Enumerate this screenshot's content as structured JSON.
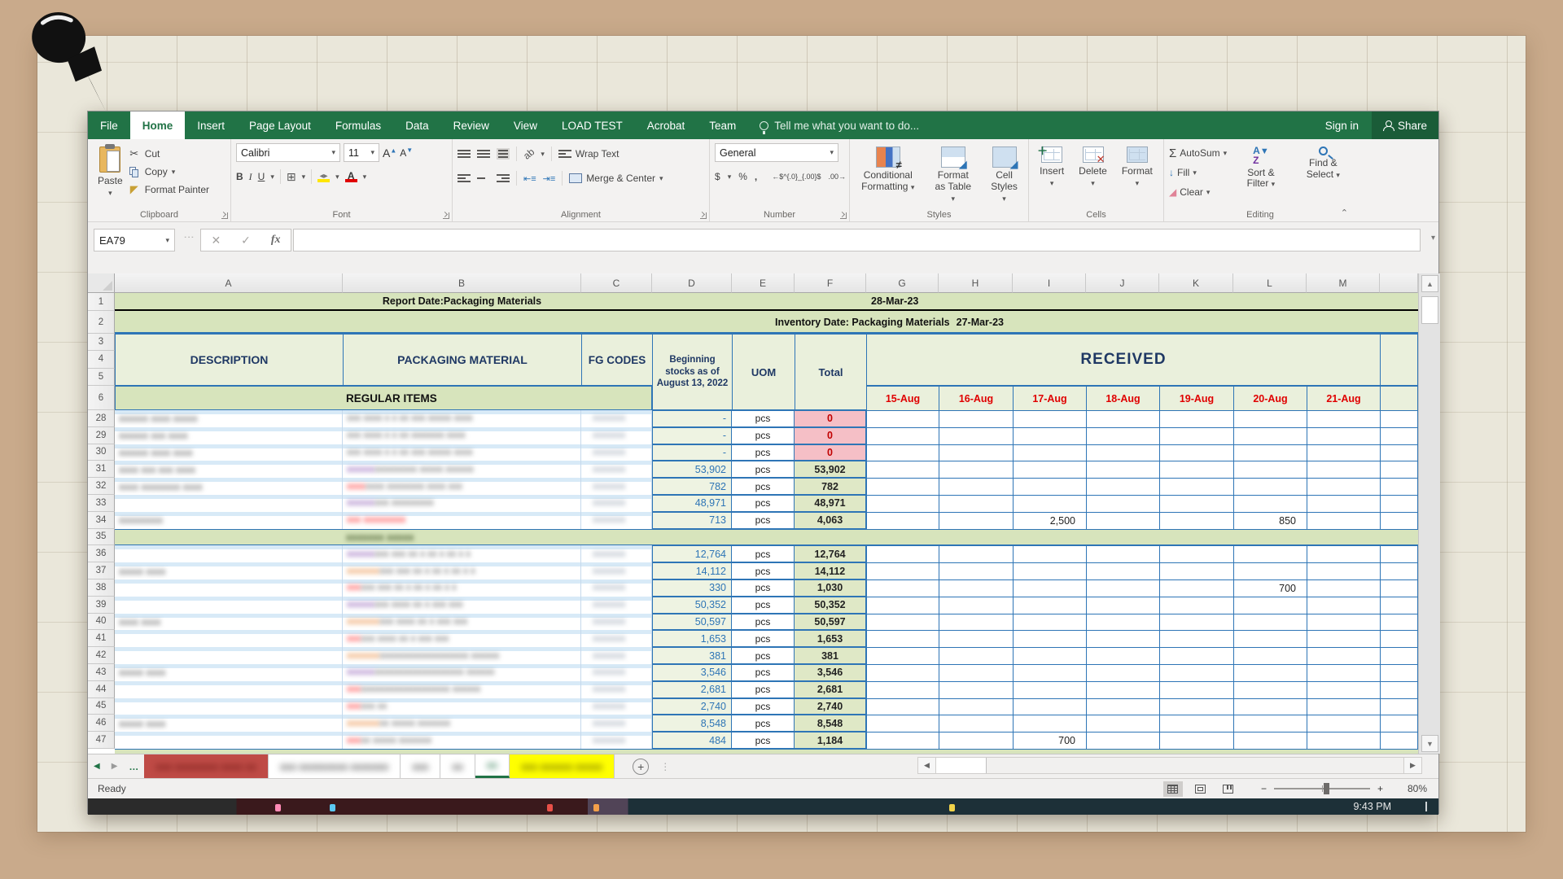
{
  "app": {
    "ribbon_tabs": [
      "File",
      "Home",
      "Insert",
      "Page Layout",
      "Formulas",
      "Data",
      "Review",
      "View",
      "LOAD TEST",
      "Acrobat",
      "Team"
    ],
    "active_tab": "Home",
    "tell_me": "Tell me what you want to do...",
    "sign_in": "Sign in",
    "share": "Share",
    "groups": {
      "clipboard": {
        "label": "Clipboard",
        "paste": "Paste",
        "cut": "Cut",
        "copy": "Copy",
        "format_painter": "Format Painter"
      },
      "font": {
        "label": "Font",
        "font_name": "Calibri",
        "font_size": "11",
        "bold": "B",
        "italic": "I",
        "underline": "U"
      },
      "alignment": {
        "label": "Alignment",
        "wrap_text": "Wrap Text",
        "merge_center": "Merge & Center"
      },
      "number": {
        "label": "Number",
        "format": "General",
        "currency": "$",
        "percent": "%",
        "comma": ",",
        "inc_dec": ".00",
        "dec_dec": ".00"
      },
      "styles": {
        "label": "Styles",
        "conditional": "Conditional Formatting",
        "format_table": "Format as Table",
        "cell_styles": "Cell Styles"
      },
      "cells": {
        "label": "Cells",
        "insert": "Insert",
        "delete": "Delete",
        "format": "Format"
      },
      "editing": {
        "label": "Editing",
        "autosum": "AutoSum",
        "fill": "Fill",
        "clear": "Clear",
        "sort_filter": "Sort & Filter",
        "find_select": "Find & Select"
      }
    },
    "formula_bar": {
      "name_box": "EA79",
      "cancel": "✕",
      "enter": "✓",
      "fx": "fx",
      "formula_value": ""
    }
  },
  "icons": {
    "dropdown": "▾",
    "up_arrow": "▴",
    "down_arrow": "▾",
    "left_tri": "◀",
    "right_tri": "▶",
    "scroll_up": "▲",
    "scroll_down": "▼",
    "scissors": "✂",
    "sigma": "Σ",
    "plus": "+",
    "minus": "−",
    "ellipsis": "…",
    "az_a": "A",
    "az_z": "Z",
    "funnel": "▼",
    "fill_arrow": "↓",
    "clear": "◢"
  },
  "sheet": {
    "columns": [
      "A",
      "B",
      "C",
      "D",
      "E",
      "F",
      "G",
      "H",
      "I",
      "J",
      "K",
      "L",
      "M"
    ],
    "row1": {
      "num": "1",
      "label": "Report Date:Packaging Materials",
      "date": "28-Mar-23"
    },
    "row2": {
      "num": "2",
      "label": "Inventory Date: Packaging Materials",
      "date": "27-Mar-23"
    },
    "header_rows": [
      "3",
      "4",
      "5"
    ],
    "row6_num": "6",
    "headers": {
      "description": "DESCRIPTION",
      "packaging": "PACKAGING MATERIAL",
      "fg_codes": "FG CODES",
      "beginning": "Beginning stocks as of August 13, 2022",
      "uom": "UOM",
      "total": "Total",
      "received": "RECEIVED"
    },
    "date_columns": [
      "15-Aug",
      "16-Aug",
      "17-Aug",
      "18-Aug",
      "19-Aug",
      "20-Aug",
      "21-Aug"
    ],
    "section_regular": "REGULAR ITEMS",
    "rows": [
      {
        "n": "28",
        "desc": "xxxxxx xxxx xxxxx",
        "pm": [
          [
            "g",
            "xxx xxxx x x xx xxx xxxxx xxxx"
          ]
        ],
        "fg": "xxxxxxx",
        "beg": "-",
        "uom": "pcs",
        "total": "0",
        "tt": "pink",
        "recv": {}
      },
      {
        "n": "29",
        "desc": "xxxxxx xxx xxxx",
        "pm": [
          [
            "g",
            "xxx xxxx x x xx xxxxxxx xxxx"
          ]
        ],
        "fg": "xxxxxxx",
        "beg": "-",
        "uom": "pcs",
        "total": "0",
        "tt": "pink",
        "recv": {}
      },
      {
        "n": "30",
        "desc": "xxxxxx xxxx xxxx",
        "pm": [
          [
            "g",
            "xxx xxxx x x xx xxx xxxxx xxxx"
          ]
        ],
        "fg": "xxxxxxx",
        "beg": "-",
        "uom": "pcs",
        "total": "0",
        "tt": "pink",
        "recv": {}
      },
      {
        "n": "31",
        "desc": "xxxx xxx xxx xxxx",
        "pm": [
          [
            "p",
            "xxxxxx"
          ],
          [
            "g",
            " xxxxxxxxx xxxxx xxxxxx"
          ]
        ],
        "fg": "xxxxxxx",
        "beg": "53,902",
        "uom": "pcs",
        "total": "53,902",
        "tt": "green",
        "recv": {}
      },
      {
        "n": "32",
        "desc": "xxxx xxxxxxxx xxxx",
        "pm": [
          [
            "r",
            "xxxx"
          ],
          [
            "g",
            " xxxx xxxxxxxx xxxx xxx"
          ]
        ],
        "fg": "xxxxxxx",
        "beg": "782",
        "uom": "pcs",
        "total": "782",
        "tt": "green",
        "recv": {}
      },
      {
        "n": "33",
        "desc": "",
        "pm": [
          [
            "p",
            "xxxxxx"
          ],
          [
            "g",
            " xxx  xxxxxxxxx"
          ]
        ],
        "fg": "xxxxxxx",
        "beg": "48,971",
        "uom": "pcs",
        "total": "48,971",
        "tt": "green",
        "recv": {}
      },
      {
        "n": "34",
        "desc": "xxxxxxxxx",
        "pm": [
          [
            "r",
            "xxx  xxxxxxxxx"
          ]
        ],
        "fg": "xxxxxxx",
        "beg": "713",
        "uom": "pcs",
        "total": "4,063",
        "tt": "green",
        "recv": {
          "I": "2,500",
          "L": "850"
        }
      },
      {
        "n": "35",
        "band": true,
        "band_text": "xxxxxxx xxxxx"
      },
      {
        "n": "36",
        "desc": "",
        "pm": [
          [
            "p",
            "xxxxxx"
          ],
          [
            "g",
            " xxx xxx xx x xx x xx x x"
          ]
        ],
        "fg": "xxxxxxx",
        "beg": "12,764",
        "uom": "pcs",
        "total": "12,764",
        "tt": "green",
        "recv": {}
      },
      {
        "n": "37",
        "desc": "xxxxx xxxx",
        "pm": [
          [
            "o",
            "xxxxxxx"
          ],
          [
            "g",
            " xxx xxx xx x xx x xx x x"
          ]
        ],
        "fg": "xxxxxxx",
        "beg": "14,112",
        "uom": "pcs",
        "total": "14,112",
        "tt": "green",
        "recv": {}
      },
      {
        "n": "38",
        "desc": "",
        "pm": [
          [
            "r",
            "xxx"
          ],
          [
            "g",
            " xxx xxx xx x xx x xx x x"
          ]
        ],
        "fg": "xxxxxxx",
        "beg": "330",
        "uom": "pcs",
        "total": "1,030",
        "tt": "green",
        "recv": {
          "L": "700"
        }
      },
      {
        "n": "39",
        "desc": "",
        "pm": [
          [
            "p",
            "xxxxxx"
          ],
          [
            "g",
            " xxx xxxx xx x xxx xxx"
          ]
        ],
        "fg": "xxxxxxx",
        "beg": "50,352",
        "uom": "pcs",
        "total": "50,352",
        "tt": "green",
        "recv": {}
      },
      {
        "n": "40",
        "desc": "xxxx xxxx",
        "pm": [
          [
            "o",
            "xxxxxxx"
          ],
          [
            "g",
            " xxx xxxx xx x xxx xxx"
          ]
        ],
        "fg": "xxxxxxx",
        "beg": "50,597",
        "uom": "pcs",
        "total": "50,597",
        "tt": "green",
        "recv": {}
      },
      {
        "n": "41",
        "desc": "",
        "pm": [
          [
            "r",
            "xxx"
          ],
          [
            "g",
            " xxx xxxx xx x xxx xxx"
          ]
        ],
        "fg": "xxxxxxx",
        "beg": "1,653",
        "uom": "pcs",
        "total": "1,653",
        "tt": "green",
        "recv": {}
      },
      {
        "n": "42",
        "desc": "",
        "pm": [
          [
            "o",
            "xxxxxxx"
          ],
          [
            "g",
            " xxxxxxxxxxxxxxxxxxx xxxxxx"
          ]
        ],
        "fg": "xxxxxxx",
        "beg": "381",
        "uom": "pcs",
        "total": "381",
        "tt": "green",
        "recv": {}
      },
      {
        "n": "43",
        "desc": "xxxxx xxxx",
        "pm": [
          [
            "p",
            "xxxxxx"
          ],
          [
            "g",
            " xxxxxxxxxxxxxxxxxxx xxxxxx"
          ]
        ],
        "fg": "xxxxxxx",
        "beg": "3,546",
        "uom": "pcs",
        "total": "3,546",
        "tt": "green",
        "recv": {}
      },
      {
        "n": "44",
        "desc": "",
        "pm": [
          [
            "r",
            "xxx"
          ],
          [
            "g",
            " xxxxxxxxxxxxxxxxxxx xxxxxx"
          ]
        ],
        "fg": "xxxxxxx",
        "beg": "2,681",
        "uom": "pcs",
        "total": "2,681",
        "tt": "green",
        "recv": {}
      },
      {
        "n": "45",
        "desc": "",
        "pm": [
          [
            "r",
            "xxx"
          ],
          [
            "g",
            " xxx xx"
          ]
        ],
        "fg": "xxxxxxx",
        "beg": "2,740",
        "uom": "pcs",
        "total": "2,740",
        "tt": "green",
        "recv": {}
      },
      {
        "n": "46",
        "desc": "xxxxx xxxx",
        "pm": [
          [
            "o",
            "xxxxxxx"
          ],
          [
            "g",
            " xx xxxxx xxxxxxx"
          ]
        ],
        "fg": "xxxxxxx",
        "beg": "8,548",
        "uom": "pcs",
        "total": "8,548",
        "tt": "green",
        "recv": {}
      },
      {
        "n": "47",
        "desc": "",
        "pm": [
          [
            "r",
            "xxx"
          ],
          [
            "g",
            " xx xxxxx xxxxxxx"
          ]
        ],
        "fg": "xxxxxxx",
        "beg": "484",
        "uom": "pcs",
        "total": "1,184",
        "tt": "green",
        "recv": {
          "I": "700"
        }
      }
    ]
  },
  "tabs_bar": {
    "sheets": [
      {
        "label": "xxx xxxxxxxx xxxx xx",
        "style": "red"
      },
      {
        "label": "xxx xxxxxxxxx xxxxxxx",
        "style": "white"
      },
      {
        "label": "xxx",
        "style": "white"
      },
      {
        "label": "xx",
        "style": "white"
      },
      {
        "label": "xx",
        "style": "active"
      },
      {
        "label": "xxx xxxxxx xxxxx",
        "style": "yellow"
      }
    ]
  },
  "status": {
    "ready": "Ready",
    "zoom_pct": "80%"
  },
  "taskbar": {
    "time": "9:43 PM"
  },
  "colors": {
    "ribbon_green": "#217346",
    "band_green": "#d7e4bc",
    "header_green": "#eaf0dc",
    "navy": "#1f3864",
    "date_red": "#e00000",
    "grid_blue": "#2e75b6",
    "pink": "#f5bfc6",
    "total_green": "#dfe8c6",
    "beg_green": "#eef3e2",
    "prefix_purple": "#7030a0",
    "prefix_orange": "#e36c09",
    "prefix_red": "#ff0000"
  }
}
